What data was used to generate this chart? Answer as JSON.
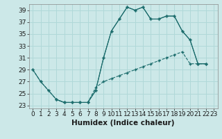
{
  "xlabel": "Humidex (Indice chaleur)",
  "bg_color": "#cce8e8",
  "line_color": "#1a6b6b",
  "grid_color": "#b0d8d8",
  "xlim": [
    -0.5,
    23.5
  ],
  "ylim": [
    22.5,
    40.0
  ],
  "yticks": [
    23,
    25,
    27,
    29,
    31,
    33,
    35,
    37,
    39
  ],
  "xticks": [
    0,
    1,
    2,
    3,
    4,
    5,
    6,
    7,
    8,
    9,
    10,
    11,
    12,
    13,
    14,
    15,
    16,
    17,
    18,
    19,
    20,
    21,
    22,
    23
  ],
  "line1_x": [
    0,
    1,
    2,
    3,
    4,
    5,
    6,
    7,
    8,
    9,
    10,
    11,
    12,
    13,
    14,
    15,
    16,
    17,
    18,
    19,
    20,
    21,
    22
  ],
  "line1_y": [
    29,
    27,
    25.5,
    24,
    23.5,
    23.5,
    23.5,
    23.5,
    25.5,
    31,
    35.5,
    37.5,
    39.5,
    39,
    39.5,
    37.5,
    37.5,
    38,
    38,
    35.5,
    34,
    30,
    30
  ],
  "line2_x": [
    0,
    1,
    2,
    3,
    4,
    5,
    6,
    7,
    8,
    9,
    10,
    11,
    12,
    13,
    14,
    15,
    16,
    17,
    18,
    19,
    20,
    21,
    22
  ],
  "line2_y": [
    29,
    27,
    25.5,
    24,
    23.5,
    23.5,
    23.5,
    23.5,
    26,
    27,
    27.5,
    28,
    28.5,
    29,
    29.5,
    30,
    30.5,
    31,
    31.5,
    32,
    30,
    30,
    30
  ],
  "line3_x": [
    3,
    4,
    5,
    6,
    7,
    8,
    9,
    10,
    11,
    12,
    13,
    14,
    15,
    16,
    17,
    18,
    19,
    20,
    21,
    22
  ],
  "line3_y": [
    24,
    23.5,
    23.5,
    23.5,
    23.5,
    25.5,
    31,
    35.5,
    37.5,
    39.5,
    39,
    39.5,
    37.5,
    37.5,
    38,
    38,
    35.5,
    34,
    30,
    30
  ],
  "tick_fontsize": 6.5,
  "xlabel_fontsize": 7.5
}
